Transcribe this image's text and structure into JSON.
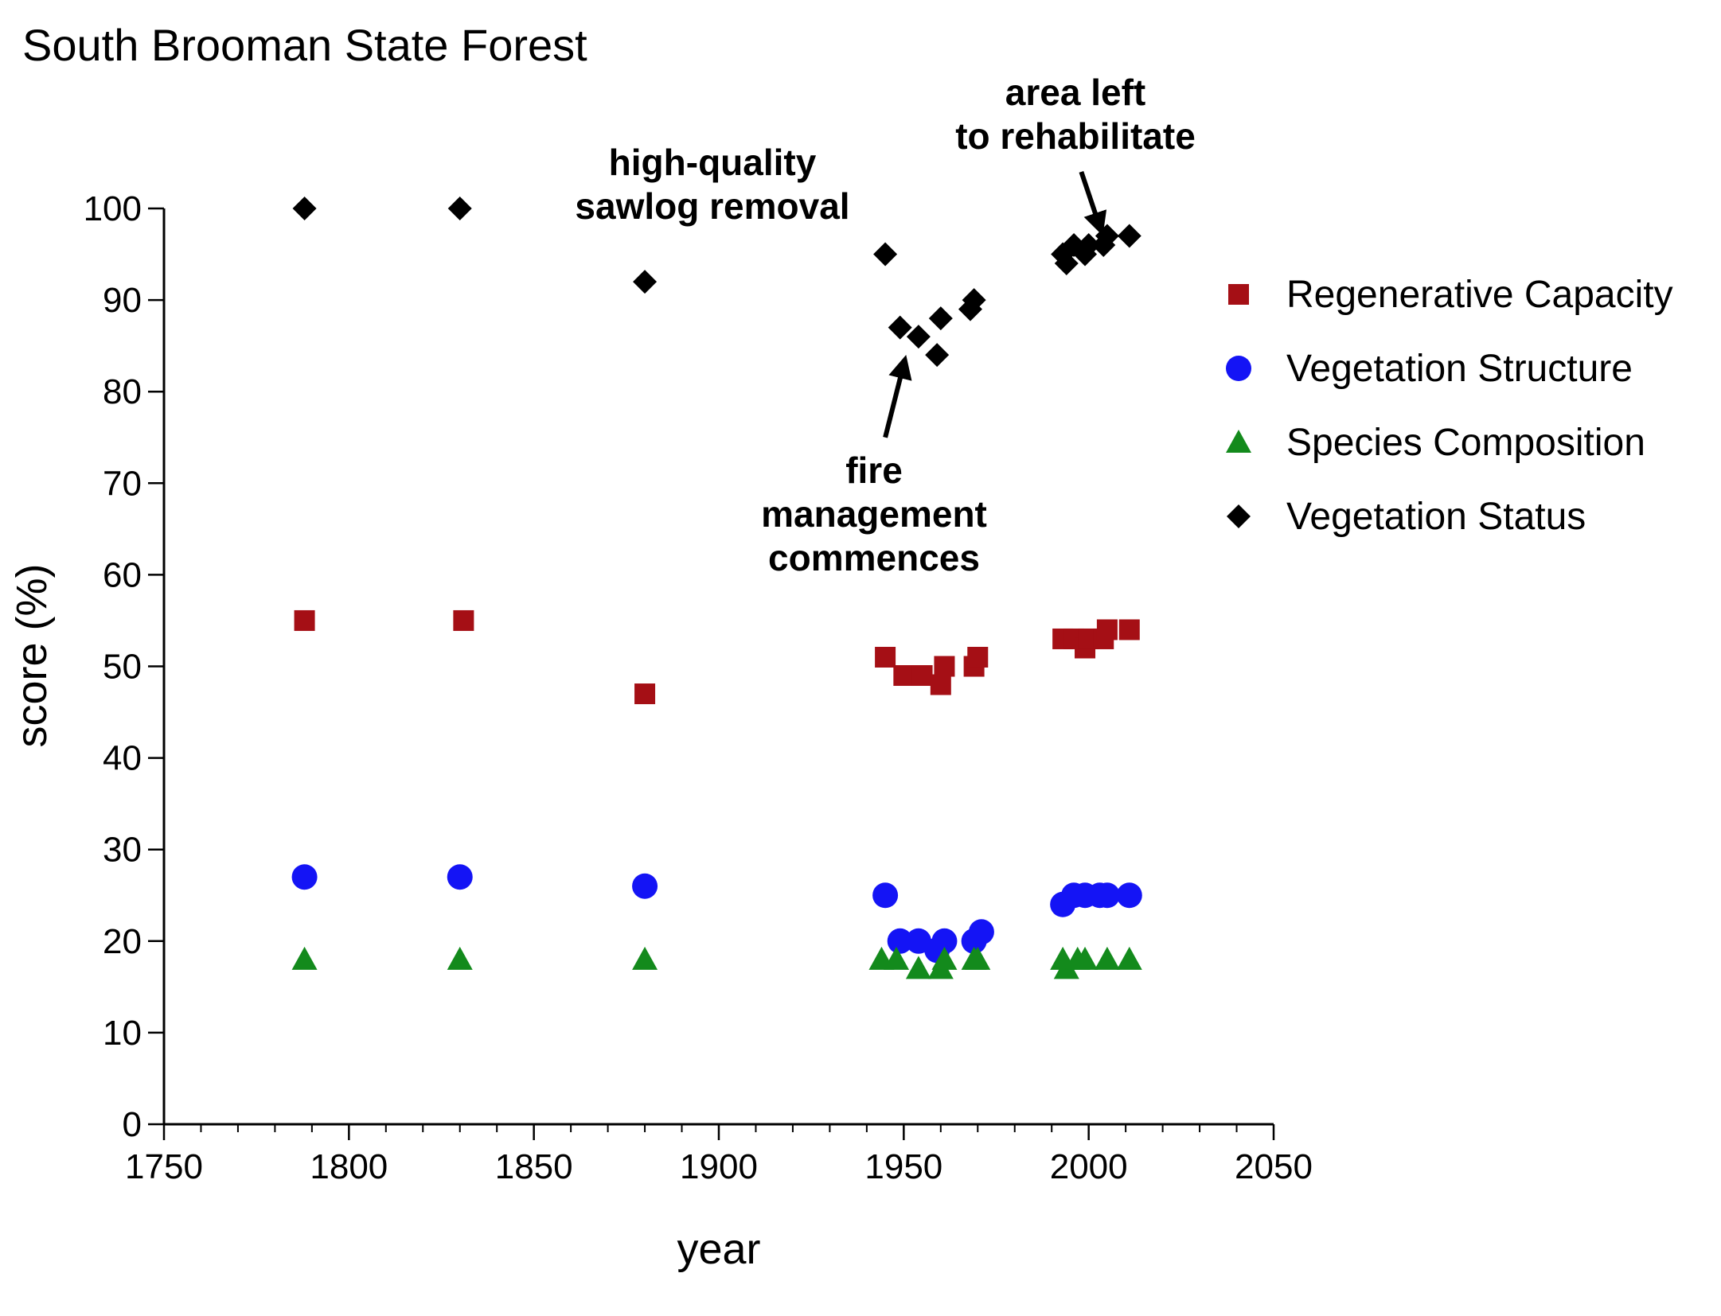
{
  "chart_data": {
    "type": "scatter",
    "title": "South Brooman State Forest",
    "xlabel": "year",
    "ylabel": "score (%)",
    "xlim": [
      1750,
      2050
    ],
    "ylim": [
      0,
      100
    ],
    "x_ticks": [
      "1750",
      "1800",
      "1850",
      "1900",
      "1950",
      "2000",
      "2050"
    ],
    "y_ticks": [
      "0",
      "10",
      "20",
      "30",
      "40",
      "50",
      "60",
      "70",
      "80",
      "90",
      "100"
    ],
    "grid": false,
    "legend_position": "right",
    "series": [
      {
        "name": "Regenerative Capacity",
        "marker": "square",
        "color": "#a50f15",
        "points": [
          {
            "x": 1788,
            "y": 55
          },
          {
            "x": 1831,
            "y": 55
          },
          {
            "x": 1880,
            "y": 47
          },
          {
            "x": 1945,
            "y": 51
          },
          {
            "x": 1950,
            "y": 49
          },
          {
            "x": 1955,
            "y": 49
          },
          {
            "x": 1960,
            "y": 48
          },
          {
            "x": 1961,
            "y": 50
          },
          {
            "x": 1969,
            "y": 50
          },
          {
            "x": 1970,
            "y": 51
          },
          {
            "x": 1993,
            "y": 53
          },
          {
            "x": 1996,
            "y": 53
          },
          {
            "x": 1999,
            "y": 52
          },
          {
            "x": 2000,
            "y": 53
          },
          {
            "x": 2004,
            "y": 53
          },
          {
            "x": 2005,
            "y": 54
          },
          {
            "x": 2011,
            "y": 54
          }
        ]
      },
      {
        "name": "Vegetation Structure",
        "marker": "circle",
        "color": "#1414f5",
        "points": [
          {
            "x": 1788,
            "y": 27
          },
          {
            "x": 1830,
            "y": 27
          },
          {
            "x": 1880,
            "y": 26
          },
          {
            "x": 1945,
            "y": 25
          },
          {
            "x": 1949,
            "y": 20
          },
          {
            "x": 1954,
            "y": 20
          },
          {
            "x": 1959,
            "y": 19
          },
          {
            "x": 1961,
            "y": 20
          },
          {
            "x": 1969,
            "y": 20
          },
          {
            "x": 1971,
            "y": 21
          },
          {
            "x": 1993,
            "y": 24
          },
          {
            "x": 1996,
            "y": 25
          },
          {
            "x": 1999,
            "y": 25
          },
          {
            "x": 2003,
            "y": 25
          },
          {
            "x": 2005,
            "y": 25
          },
          {
            "x": 2011,
            "y": 25
          }
        ]
      },
      {
        "name": "Species Composition",
        "marker": "triangle",
        "color": "#138a1c",
        "points": [
          {
            "x": 1788,
            "y": 18
          },
          {
            "x": 1830,
            "y": 18
          },
          {
            "x": 1880,
            "y": 18
          },
          {
            "x": 1944,
            "y": 18
          },
          {
            "x": 1948,
            "y": 18
          },
          {
            "x": 1954,
            "y": 17
          },
          {
            "x": 1960,
            "y": 17
          },
          {
            "x": 1961,
            "y": 18
          },
          {
            "x": 1969,
            "y": 18
          },
          {
            "x": 1970,
            "y": 18
          },
          {
            "x": 1993,
            "y": 18
          },
          {
            "x": 1994,
            "y": 17
          },
          {
            "x": 1997,
            "y": 18
          },
          {
            "x": 1999,
            "y": 18
          },
          {
            "x": 2005,
            "y": 18
          },
          {
            "x": 2011,
            "y": 18
          }
        ]
      },
      {
        "name": "Vegetation Status",
        "marker": "diamond",
        "color": "#000000",
        "points": [
          {
            "x": 1788,
            "y": 100
          },
          {
            "x": 1830,
            "y": 100
          },
          {
            "x": 1880,
            "y": 92
          },
          {
            "x": 1945,
            "y": 95
          },
          {
            "x": 1949,
            "y": 87
          },
          {
            "x": 1954,
            "y": 86
          },
          {
            "x": 1959,
            "y": 84
          },
          {
            "x": 1960,
            "y": 88
          },
          {
            "x": 1968,
            "y": 89
          },
          {
            "x": 1969,
            "y": 90
          },
          {
            "x": 1993,
            "y": 95
          },
          {
            "x": 1994,
            "y": 94
          },
          {
            "x": 1996,
            "y": 96
          },
          {
            "x": 1999,
            "y": 95
          },
          {
            "x": 2000,
            "y": 96
          },
          {
            "x": 2004,
            "y": 96
          },
          {
            "x": 2005,
            "y": 97
          },
          {
            "x": 2011,
            "y": 97
          }
        ]
      }
    ],
    "annotations": [
      {
        "lines": [
          "high-quality",
          "sawlog removal"
        ],
        "anchor": {
          "x": 1898,
          "y": 102.5
        },
        "arrow": false
      },
      {
        "lines": [
          "area left",
          "to rehabilitate"
        ],
        "anchor": {
          "x": 1996,
          "y": 107.5
        },
        "arrow": true,
        "arrow_from": {
          "x": 1998,
          "y": 104
        },
        "arrow_to": {
          "x": 2003,
          "y": 98
        }
      },
      {
        "lines": [
          "fire",
          "management",
          "commences"
        ],
        "anchor": {
          "x": 1991,
          "y": 71
        },
        "arrow": true,
        "arrow_from": {
          "x": 1945,
          "y": 75
        },
        "arrow_to": {
          "x": 1950,
          "y": 83
        }
      }
    ]
  }
}
